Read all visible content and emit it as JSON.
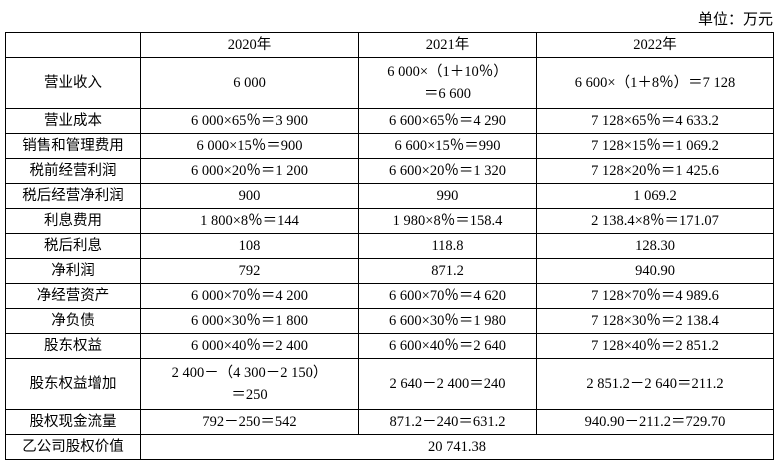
{
  "unit": "单位：万元",
  "table": {
    "header": [
      "",
      "2020年",
      "2021年",
      "2022年"
    ],
    "rows": [
      [
        "营业收入",
        "6 000",
        [
          "6 000×（1＋10％）",
          "＝6 600"
        ],
        "6 600×（1＋8％）＝7 128"
      ],
      [
        "营业成本",
        "6 000×65％＝3 900",
        "6 600×65％＝4 290",
        "7 128×65％＝4 633.2"
      ],
      [
        "销售和管理费用",
        "6 000×15％＝900",
        "6 600×15％＝990",
        "7 128×15％＝1 069.2"
      ],
      [
        "税前经营利润",
        "6 000×20％＝1 200",
        "6 600×20％＝1 320",
        "7 128×20％＝1 425.6"
      ],
      [
        "税后经营净利润",
        "900",
        "990",
        "1 069.2"
      ],
      [
        "利息费用",
        "1 800×8％＝144",
        "1 980×8％＝158.4",
        "2 138.4×8％＝171.07"
      ],
      [
        "税后利息",
        "108",
        "118.8",
        "128.30"
      ],
      [
        "净利润",
        "792",
        "871.2",
        "940.90"
      ],
      [
        "净经营资产",
        "6 000×70％＝4 200",
        "6 600×70％＝4 620",
        "7 128×70％＝4 989.6"
      ],
      [
        "净负债",
        "6 000×30％＝1 800",
        "6 600×30％＝1 980",
        "7 128×30％＝2 138.4"
      ],
      [
        "股东权益",
        "6 000×40％＝2 400",
        "6 600×40％＝2 640",
        "7 128×40％＝2 851.2"
      ],
      [
        "股东权益增加",
        [
          "2 400－（4 300－2 150）",
          "＝250"
        ],
        "2 640－2 400＝240",
        "2 851.2－2 640＝211.2"
      ],
      [
        "股权现金流量",
        "792－250＝542",
        "871.2－240＝631.2",
        "940.90－211.2＝729.70"
      ],
      [
        "乙公司股权价值",
        "20 741.38"
      ]
    ]
  }
}
